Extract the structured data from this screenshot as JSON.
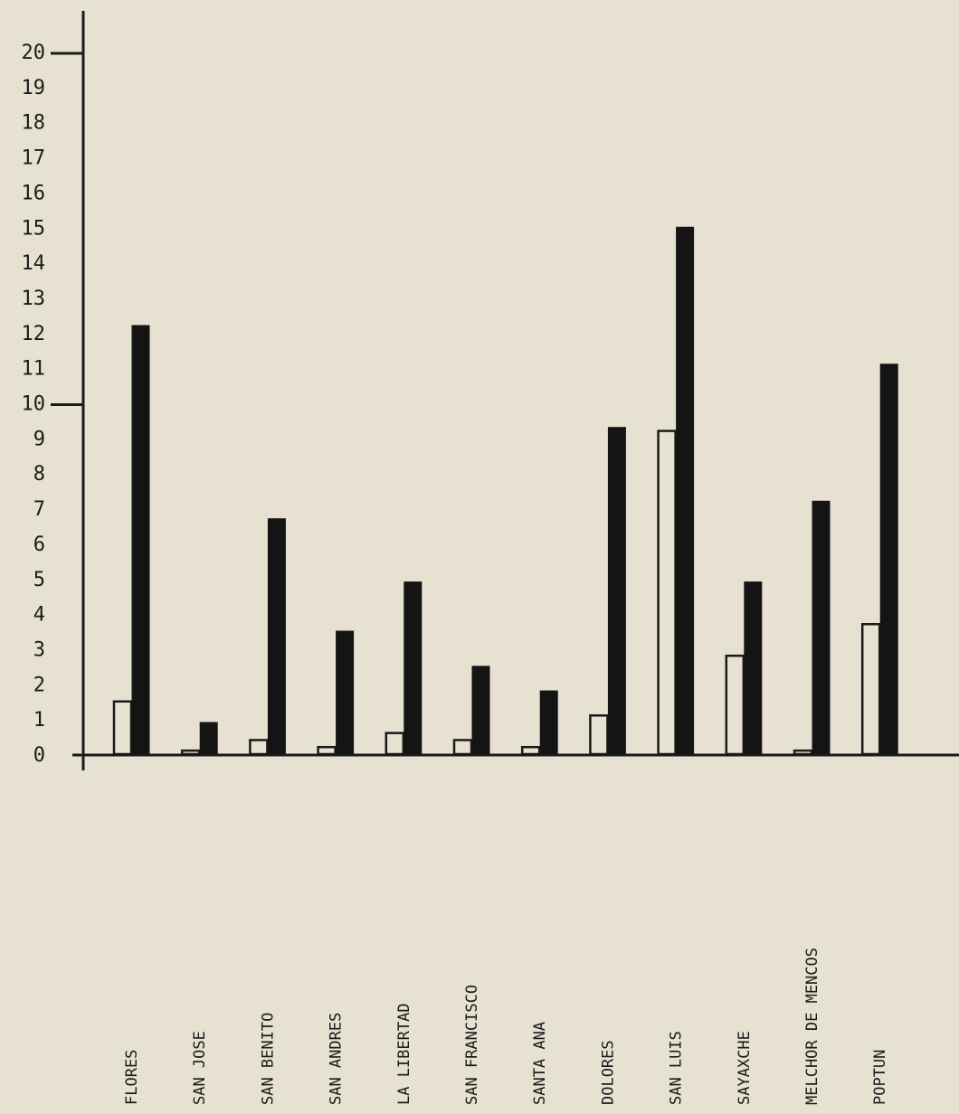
{
  "chart_data": {
    "type": "bar",
    "title": "",
    "xlabel": "",
    "ylabel": "",
    "ylim": [
      0,
      20
    ],
    "grid": false,
    "legend": "none",
    "y_ticks": [
      "0",
      "1",
      "2",
      "3",
      "4",
      "5",
      "6",
      "7",
      "8",
      "9",
      "10",
      "11",
      "12",
      "13",
      "14",
      "15",
      "16",
      "17",
      "18",
      "19",
      "20"
    ],
    "major_ticks": [
      10,
      20
    ],
    "categories": [
      "FLORES",
      "SAN JOSE",
      "SAN BENITO",
      "SAN ANDRES",
      "LA LIBERTAD",
      "SAN FRANCISCO",
      "SANTA ANA",
      "DOLORES",
      "SAN LUIS",
      "SAYAXCHE",
      "MELCHOR DE MENCOS",
      "POPTUN"
    ],
    "series": [
      {
        "style": "hollow",
        "color": "#1a1a1a",
        "values": [
          1.5,
          0.1,
          0.4,
          0.2,
          0.6,
          0.4,
          0.2,
          1.1,
          9.2,
          2.8,
          0.1,
          3.7
        ]
      },
      {
        "style": "filled",
        "color": "#141414",
        "values": [
          12.2,
          0.9,
          6.7,
          3.5,
          4.9,
          2.5,
          1.8,
          9.3,
          15.0,
          4.9,
          7.2,
          11.1
        ]
      }
    ]
  }
}
